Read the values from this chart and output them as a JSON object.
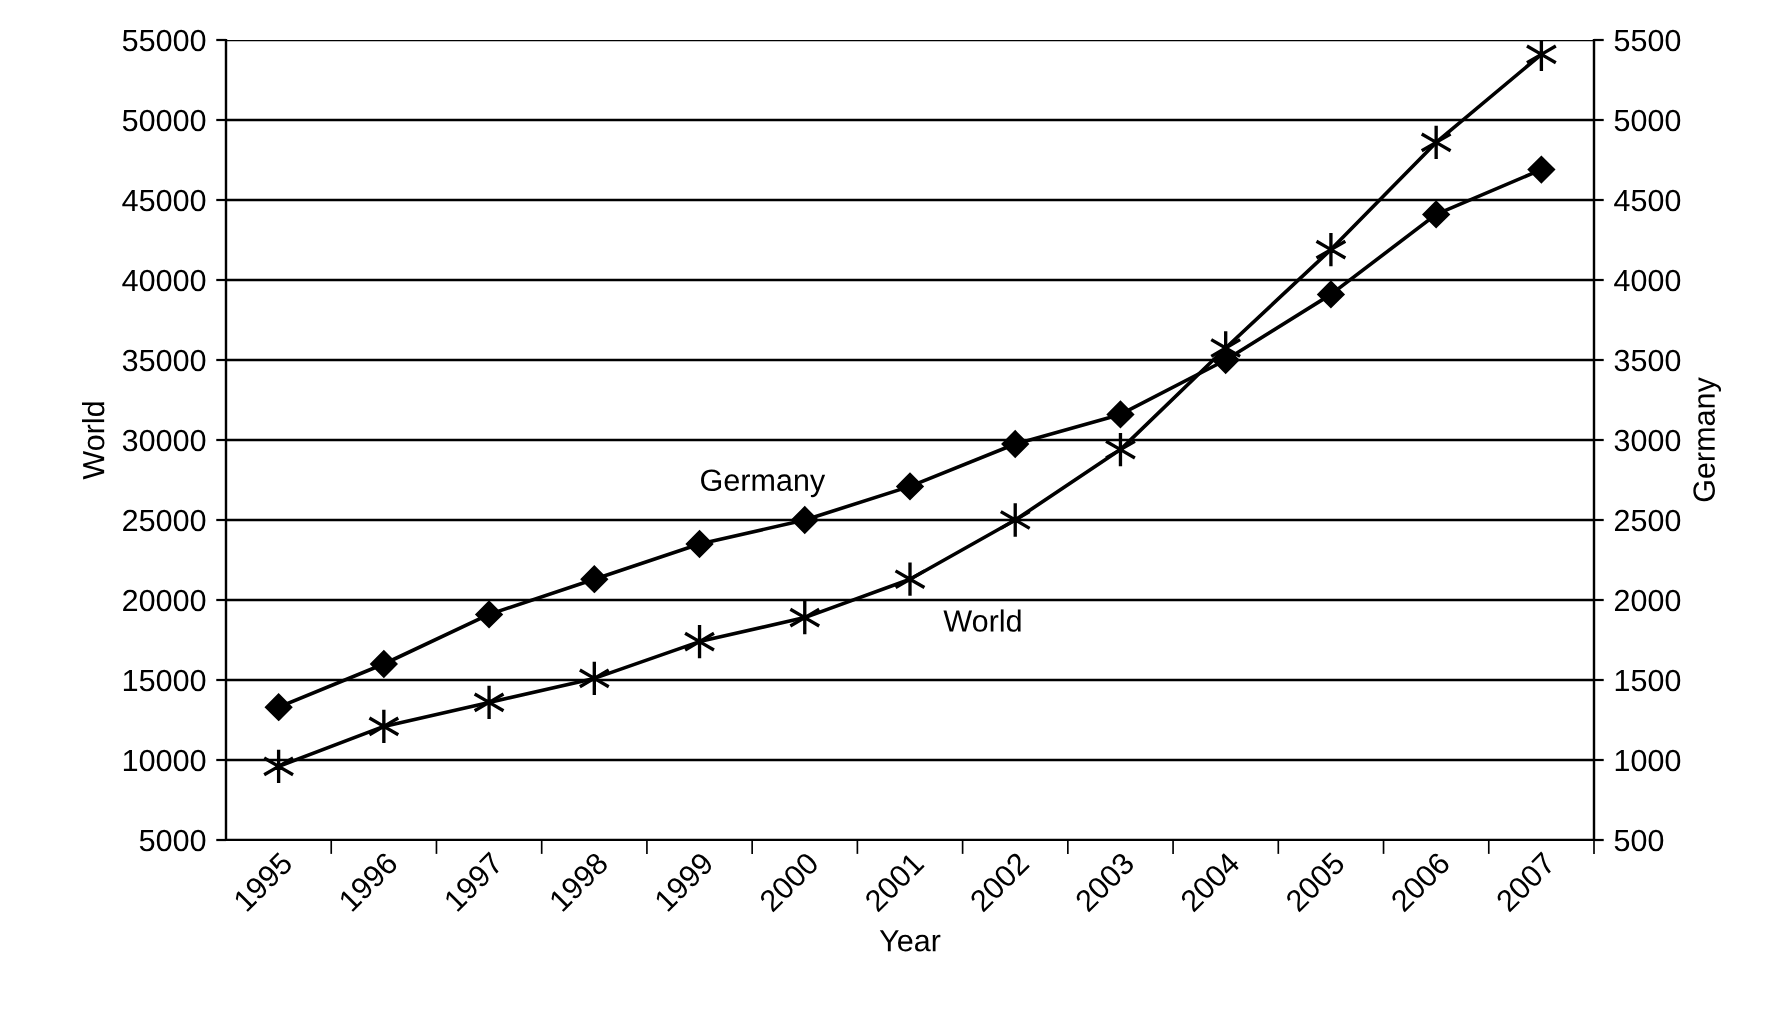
{
  "chart_data": {
    "type": "line",
    "xlabel": "Year",
    "ylabel": "World",
    "y2label": "Germany",
    "categories": [
      "1995",
      "1996",
      "1997",
      "1998",
      "1999",
      "2000",
      "2001",
      "2002",
      "2003",
      "2004",
      "2005",
      "2006",
      "2007"
    ],
    "series": [
      {
        "name": "Germany",
        "color": "#000000",
        "marker": "diamond",
        "axis": "y2",
        "values": [
          1330,
          1600,
          1910,
          2130,
          2350,
          2500,
          2710,
          2975,
          3160,
          3500,
          3910,
          4410,
          4690
        ]
      },
      {
        "name": "World",
        "color": "#000000",
        "marker": "cross",
        "values": [
          9600,
          12100,
          13600,
          15100,
          17400,
          18900,
          21300,
          25000,
          29400,
          35750,
          41900,
          48600,
          54100
        ]
      }
    ],
    "ylim": [
      5000,
      55000
    ],
    "yticks": [
      5000,
      10000,
      15000,
      20000,
      25000,
      30000,
      35000,
      40000,
      45000,
      50000,
      55000
    ],
    "y2lim": [
      500,
      5500
    ],
    "y2ticks": [
      500,
      1000,
      1500,
      2000,
      2500,
      3000,
      3500,
      4000,
      4500,
      5000,
      5500
    ],
    "grid": "y",
    "legend": false,
    "line_style": "solid"
  }
}
